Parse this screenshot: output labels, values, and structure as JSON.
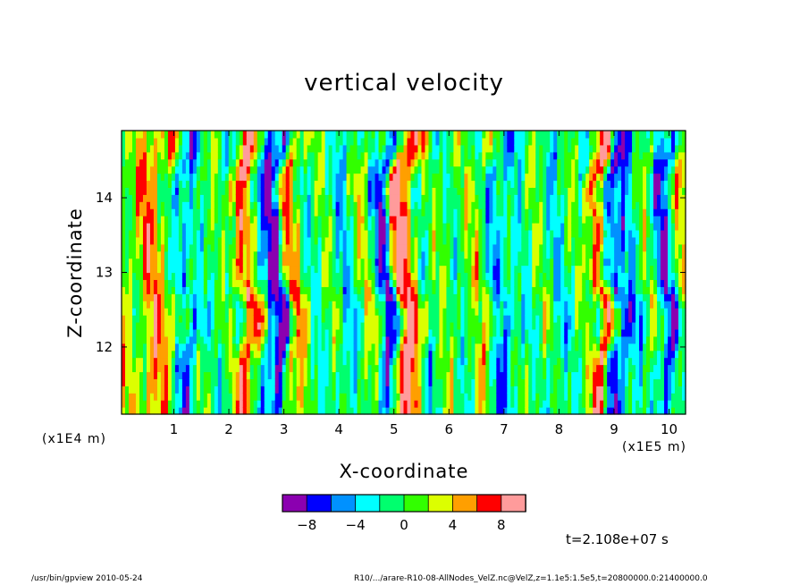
{
  "chart_data": {
    "type": "heatmap",
    "title": "vertical velocity",
    "xlabel": "X-coordinate",
    "ylabel": "Z-coordinate",
    "x_unit": "(x1E5 m)",
    "y_unit": "(x1E4 m)",
    "xlim": [
      0.05,
      10.3
    ],
    "ylim": [
      11.1,
      14.9
    ],
    "x_ticks": [
      1,
      2,
      3,
      4,
      5,
      6,
      7,
      8,
      9,
      10
    ],
    "y_ticks": [
      12,
      13,
      14
    ],
    "colorbar": {
      "levels": [
        -10,
        -8,
        -6,
        -4,
        -2,
        0,
        2,
        4,
        6,
        8,
        10
      ],
      "tick_values": [
        -8,
        -4,
        0,
        4,
        8
      ],
      "colors": [
        "#8b00b0",
        "#0000ff",
        "#0091ff",
        "#00ffff",
        "#00ff6e",
        "#32ff00",
        "#dcff00",
        "#ff9f00",
        "#ff0000",
        "#ff9b9b"
      ]
    },
    "dominant_columns": [
      {
        "x": 0.3,
        "value": 2
      },
      {
        "x": 0.55,
        "value": 5
      },
      {
        "x": 0.9,
        "value": 3
      },
      {
        "x": 1.2,
        "value": -6
      },
      {
        "x": 1.6,
        "value": 1
      },
      {
        "x": 2.0,
        "value": -2
      },
      {
        "x": 2.3,
        "value": 9
      },
      {
        "x": 2.6,
        "value": -4
      },
      {
        "x": 2.9,
        "value": -8
      },
      {
        "x": 3.1,
        "value": 5
      },
      {
        "x": 3.5,
        "value": -1
      },
      {
        "x": 3.8,
        "value": 0
      },
      {
        "x": 4.1,
        "value": -3
      },
      {
        "x": 4.5,
        "value": 2
      },
      {
        "x": 4.9,
        "value": -7
      },
      {
        "x": 5.1,
        "value": 8
      },
      {
        "x": 5.3,
        "value": 7
      },
      {
        "x": 5.6,
        "value": -2
      },
      {
        "x": 6.0,
        "value": 1
      },
      {
        "x": 6.3,
        "value": -1
      },
      {
        "x": 6.6,
        "value": 3
      },
      {
        "x": 6.9,
        "value": -5
      },
      {
        "x": 7.2,
        "value": -2
      },
      {
        "x": 7.6,
        "value": 1
      },
      {
        "x": 7.9,
        "value": -3
      },
      {
        "x": 8.2,
        "value": 0
      },
      {
        "x": 8.5,
        "value": -1
      },
      {
        "x": 8.75,
        "value": 9
      },
      {
        "x": 9.0,
        "value": -8
      },
      {
        "x": 9.3,
        "value": -3
      },
      {
        "x": 9.6,
        "value": 1
      },
      {
        "x": 9.95,
        "value": -7
      },
      {
        "x": 10.2,
        "value": 2
      }
    ]
  },
  "timestamp": "t=2.108e+07 s",
  "footer_left": "/usr/bin/gpview   2010-05-24",
  "footer_right": "R10/.../arare-R10-08-AllNodes_VelZ.nc@VelZ,z=1.1e5:1.5e5,t=20800000.0:21400000.0"
}
